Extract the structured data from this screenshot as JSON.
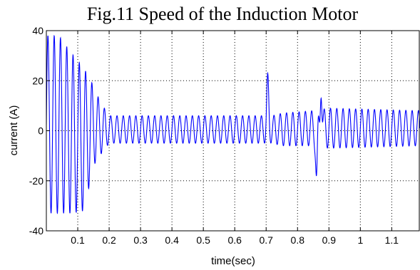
{
  "chart_data": {
    "type": "line",
    "title": "Fig.11 Speed of the Induction Motor",
    "xlabel": "time(sec)",
    "ylabel": "current (A)",
    "xlim": [
      0,
      1.19
    ],
    "ylim": [
      -40,
      40
    ],
    "xticks": [
      0.1,
      0.2,
      0.3,
      0.4,
      0.5,
      0.6,
      0.7,
      0.8,
      0.9,
      1,
      1.1
    ],
    "xtick_labels": [
      "0.1",
      "0.2",
      "0.3",
      "0.4",
      "0.5",
      "0.6",
      "0.7",
      "0.8",
      "0.9",
      "1",
      "1.1"
    ],
    "yticks": [
      -40,
      -20,
      0,
      20,
      40
    ],
    "ytick_labels": [
      "-40",
      "-20",
      "0",
      "20",
      "40"
    ],
    "grid": true,
    "grid_style": "dotted",
    "line_color": "#0000ff",
    "series": [
      {
        "frequency_hz": 50,
        "envelope": [
          {
            "x": 0.0,
            "upper": 38,
            "lower": -33
          },
          {
            "x": 0.04,
            "upper": 38,
            "lower": -33
          },
          {
            "x": 0.08,
            "upper": 31,
            "lower": -33
          },
          {
            "x": 0.12,
            "upper": 25,
            "lower": -32
          },
          {
            "x": 0.15,
            "upper": 18,
            "lower": -14
          },
          {
            "x": 0.17,
            "upper": 12,
            "lower": -10
          },
          {
            "x": 0.2,
            "upper": 6,
            "lower": -5
          },
          {
            "x": 0.5,
            "upper": 6,
            "lower": -5
          },
          {
            "x": 0.7,
            "upper": 6,
            "lower": -5
          },
          {
            "x": 0.72,
            "upper": 6,
            "lower": -5
          },
          {
            "x": 0.75,
            "upper": 7,
            "lower": -6
          },
          {
            "x": 0.85,
            "upper": 8,
            "lower": -6
          },
          {
            "x": 0.9,
            "upper": 9,
            "lower": -7
          },
          {
            "x": 1.19,
            "upper": 8,
            "lower": -6
          }
        ],
        "events": [
          {
            "x": 0.705,
            "y": 23
          },
          {
            "x": 0.86,
            "y": -18
          },
          {
            "x": 0.875,
            "y": 13
          }
        ]
      }
    ]
  }
}
